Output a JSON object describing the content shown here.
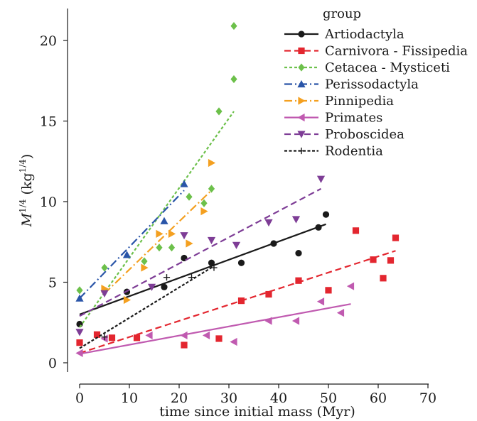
{
  "chart_data": {
    "type": "scatter",
    "title": "",
    "xlabel": "time since initial mass (Myr)",
    "ylabel": {
      "base": "M",
      "exp": "1/4",
      "unit_open": " (kg",
      "unit_exp": "1/4",
      "unit_close": ")"
    },
    "xlim": [
      -4,
      72
    ],
    "ylim": [
      -0.5,
      22
    ],
    "xticks": [
      0,
      10,
      20,
      30,
      40,
      50,
      60,
      70
    ],
    "yticks": [
      0,
      5,
      10,
      15,
      20
    ],
    "grid": false,
    "legend": {
      "title": "group",
      "placement": "top-right"
    },
    "series": [
      {
        "name": "Artiodactyla",
        "color": "#1a1a1a",
        "marker": "circle",
        "dash": "solid",
        "points": [
          [
            0,
            2.4
          ],
          [
            9.5,
            4.4
          ],
          [
            17,
            4.7
          ],
          [
            21,
            6.5
          ],
          [
            26.5,
            6.2
          ],
          [
            32.5,
            6.2
          ],
          [
            39,
            7.4
          ],
          [
            44,
            6.8
          ],
          [
            48,
            8.4
          ],
          [
            49.5,
            9.2
          ]
        ],
        "fit": [
          [
            0,
            3.0
          ],
          [
            49.5,
            8.6
          ]
        ]
      },
      {
        "name": "Carnivora - Fissipedia",
        "color": "#e3262f",
        "marker": "square",
        "dash": "dashed",
        "points": [
          [
            0,
            1.25
          ],
          [
            3.5,
            1.75
          ],
          [
            6.5,
            1.55
          ],
          [
            11.5,
            1.55
          ],
          [
            21,
            1.1
          ],
          [
            28,
            1.5
          ],
          [
            32.5,
            3.85
          ],
          [
            38,
            4.25
          ],
          [
            44,
            5.1
          ],
          [
            50,
            4.5
          ],
          [
            55.5,
            8.2
          ],
          [
            59,
            6.4
          ],
          [
            61,
            5.25
          ],
          [
            62.5,
            6.35
          ],
          [
            63.5,
            7.75
          ]
        ],
        "fit": [
          [
            0,
            0.6
          ],
          [
            63.5,
            6.95
          ]
        ]
      },
      {
        "name": "Cetacea - Mysticeti",
        "color": "#6cc04a",
        "marker": "diamond",
        "dash": "dotted",
        "points": [
          [
            0,
            4.5
          ],
          [
            5,
            5.9
          ],
          [
            13,
            6.3
          ],
          [
            16,
            7.15
          ],
          [
            18.5,
            7.15
          ],
          [
            22,
            10.3
          ],
          [
            25,
            9.9
          ],
          [
            26.5,
            10.8
          ],
          [
            28,
            15.6
          ],
          [
            31,
            17.6
          ],
          [
            31,
            20.9
          ]
        ],
        "fit": [
          [
            0,
            2.2
          ],
          [
            31,
            15.6
          ]
        ]
      },
      {
        "name": "Perissodactyla",
        "color": "#2a55a8",
        "marker": "triangle-up",
        "dash": "dashdot",
        "points": [
          [
            0,
            4.0
          ],
          [
            9.5,
            6.7
          ],
          [
            17,
            8.8
          ],
          [
            21,
            11.1
          ]
        ],
        "fit": [
          [
            0,
            4.0
          ],
          [
            21,
            10.7
          ]
        ]
      },
      {
        "name": "Pinnipedia",
        "color": "#f4a020",
        "marker": "triangle-right",
        "dash": "dashdot",
        "points": [
          [
            5,
            4.6
          ],
          [
            9.5,
            3.9
          ],
          [
            13,
            5.9
          ],
          [
            16,
            8.0
          ],
          [
            18.5,
            8.0
          ],
          [
            22,
            7.4
          ],
          [
            25,
            9.4
          ],
          [
            26.5,
            12.4
          ]
        ],
        "fit": [
          [
            5,
            4.3
          ],
          [
            26.5,
            10.7
          ]
        ]
      },
      {
        "name": "Primates",
        "color": "#c05ab0",
        "marker": "triangle-left",
        "dash": "solid",
        "points": [
          [
            0,
            0.6
          ],
          [
            5,
            1.5
          ],
          [
            14,
            1.7
          ],
          [
            21,
            1.7
          ],
          [
            25.5,
            1.7
          ],
          [
            31,
            1.3
          ],
          [
            38,
            2.6
          ],
          [
            43.5,
            2.6
          ],
          [
            48.5,
            3.8
          ],
          [
            52.5,
            3.1
          ],
          [
            54.5,
            4.75
          ]
        ],
        "fit": [
          [
            0,
            0.55
          ],
          [
            54.5,
            3.65
          ]
        ]
      },
      {
        "name": "Proboscidea",
        "color": "#7e3d96",
        "marker": "triangle-down",
        "dash": "dashed",
        "points": [
          [
            0,
            1.9
          ],
          [
            5,
            4.3
          ],
          [
            14.5,
            4.7
          ],
          [
            21,
            7.9
          ],
          [
            26.5,
            7.6
          ],
          [
            31.5,
            7.3
          ],
          [
            38,
            8.7
          ],
          [
            43.5,
            8.9
          ],
          [
            48.5,
            11.4
          ]
        ],
        "fit": [
          [
            0,
            2.9
          ],
          [
            48.5,
            10.8
          ]
        ]
      },
      {
        "name": "Rodentia",
        "color": "#1a1a1a",
        "marker": "plus",
        "dash": "dashed-fine",
        "points": [
          [
            5,
            1.6
          ],
          [
            17.5,
            5.3
          ],
          [
            22.5,
            5.3
          ],
          [
            27,
            5.9
          ]
        ],
        "fit": [
          [
            0,
            0.9
          ],
          [
            27,
            6.0
          ]
        ]
      }
    ]
  }
}
